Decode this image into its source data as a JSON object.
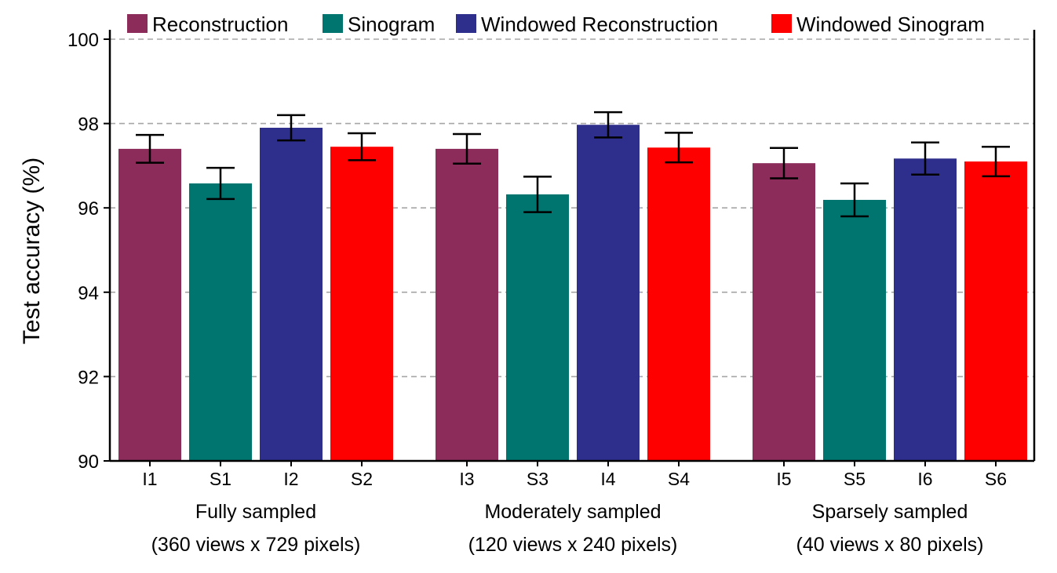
{
  "chart_data": {
    "type": "bar",
    "title": "",
    "xlabel": "",
    "ylabel": "Test accuracy (%)",
    "ylim": [
      90,
      100
    ],
    "yticks": [
      90,
      92,
      94,
      96,
      98,
      100
    ],
    "grid": "horizontal dashed",
    "legend_position": "top",
    "series": [
      {
        "name": "Reconstruction",
        "color": "#8B2C5A"
      },
      {
        "name": "Sinogram",
        "color": "#007570"
      },
      {
        "name": "Windowed Reconstruction",
        "color": "#2E2E8C"
      },
      {
        "name": "Windowed Sinogram",
        "color": "#FF0000"
      }
    ],
    "groups": [
      {
        "label_line1": "Fully sampled",
        "label_line2": "(360 views x 729 pixels)",
        "bars": [
          {
            "category": "I1",
            "series": 0,
            "value": 97.4,
            "err": 0.33
          },
          {
            "category": "S1",
            "series": 1,
            "value": 96.58,
            "err": 0.37
          },
          {
            "category": "I2",
            "series": 2,
            "value": 97.9,
            "err": 0.3
          },
          {
            "category": "S2",
            "series": 3,
            "value": 97.45,
            "err": 0.32
          }
        ]
      },
      {
        "label_line1": "Moderately sampled",
        "label_line2": "(120 views x 240 pixels)",
        "bars": [
          {
            "category": "I3",
            "series": 0,
            "value": 97.4,
            "err": 0.35
          },
          {
            "category": "S3",
            "series": 1,
            "value": 96.32,
            "err": 0.42
          },
          {
            "category": "I4",
            "series": 2,
            "value": 97.97,
            "err": 0.3
          },
          {
            "category": "S4",
            "series": 3,
            "value": 97.43,
            "err": 0.35
          }
        ]
      },
      {
        "label_line1": "Sparsely sampled",
        "label_line2": "(40 views x 80 pixels)",
        "bars": [
          {
            "category": "I5",
            "series": 0,
            "value": 97.06,
            "err": 0.36
          },
          {
            "category": "S5",
            "series": 1,
            "value": 96.19,
            "err": 0.39
          },
          {
            "category": "I6",
            "series": 2,
            "value": 97.17,
            "err": 0.38
          },
          {
            "category": "S6",
            "series": 3,
            "value": 97.1,
            "err": 0.35
          }
        ]
      }
    ]
  }
}
